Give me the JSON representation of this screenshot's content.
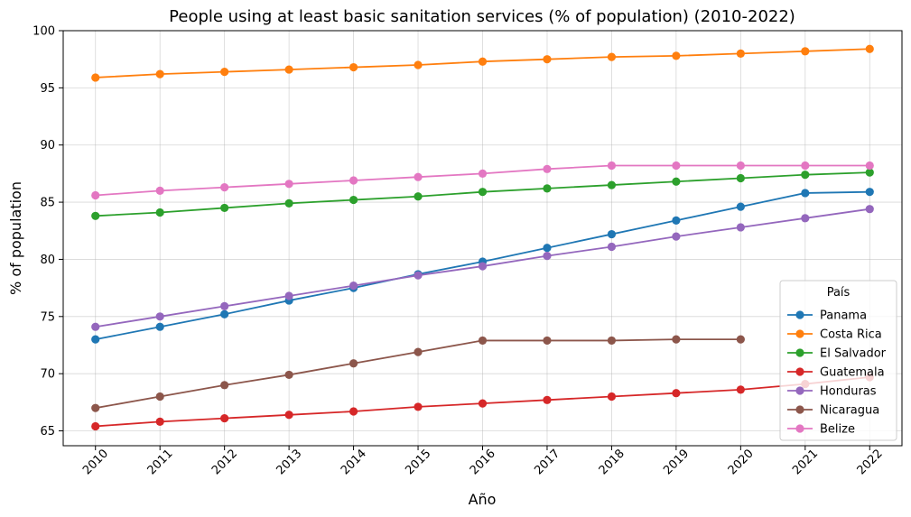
{
  "chart_data": {
    "type": "line",
    "title": "People using at least basic sanitation services (% of population) (2010-2022)",
    "xlabel": "Año",
    "ylabel": "% of population",
    "x": [
      2010,
      2011,
      2012,
      2013,
      2014,
      2015,
      2016,
      2017,
      2018,
      2019,
      2020,
      2021,
      2022
    ],
    "ylim": [
      63.7,
      100
    ],
    "yticks": [
      65,
      70,
      75,
      80,
      85,
      90,
      95,
      100
    ],
    "grid": true,
    "legend": {
      "title": "País",
      "placement": "lower-right"
    },
    "series": [
      {
        "name": "Panama",
        "color": "#1f77b4",
        "values": [
          73.0,
          74.1,
          75.2,
          76.4,
          77.5,
          78.7,
          79.8,
          81.0,
          82.2,
          83.4,
          84.6,
          85.8,
          85.9
        ]
      },
      {
        "name": "Costa Rica",
        "color": "#ff7f0e",
        "values": [
          95.9,
          96.2,
          96.4,
          96.6,
          96.8,
          97.0,
          97.3,
          97.5,
          97.7,
          97.8,
          98.0,
          98.2,
          98.4
        ]
      },
      {
        "name": "El Salvador",
        "color": "#2ca02c",
        "values": [
          83.8,
          84.1,
          84.5,
          84.9,
          85.2,
          85.5,
          85.9,
          86.2,
          86.5,
          86.8,
          87.1,
          87.4,
          87.6
        ]
      },
      {
        "name": "Guatemala",
        "color": "#d62728",
        "values": [
          65.4,
          65.8,
          66.1,
          66.4,
          66.7,
          67.1,
          67.4,
          67.7,
          68.0,
          68.3,
          68.6,
          69.1,
          69.7
        ]
      },
      {
        "name": "Honduras",
        "color": "#9467bd",
        "values": [
          74.1,
          75.0,
          75.9,
          76.8,
          77.7,
          78.6,
          79.4,
          80.3,
          81.1,
          82.0,
          82.8,
          83.6,
          84.4
        ]
      },
      {
        "name": "Nicaragua",
        "color": "#8c564b",
        "values": [
          67.0,
          68.0,
          69.0,
          69.9,
          70.9,
          71.9,
          72.9,
          72.9,
          72.9,
          73.0,
          73.0,
          null,
          null
        ]
      },
      {
        "name": "Belize",
        "color": "#e377c2",
        "values": [
          85.6,
          86.0,
          86.3,
          86.6,
          86.9,
          87.2,
          87.5,
          87.9,
          88.2,
          88.2,
          88.2,
          88.2,
          88.2
        ]
      }
    ]
  }
}
